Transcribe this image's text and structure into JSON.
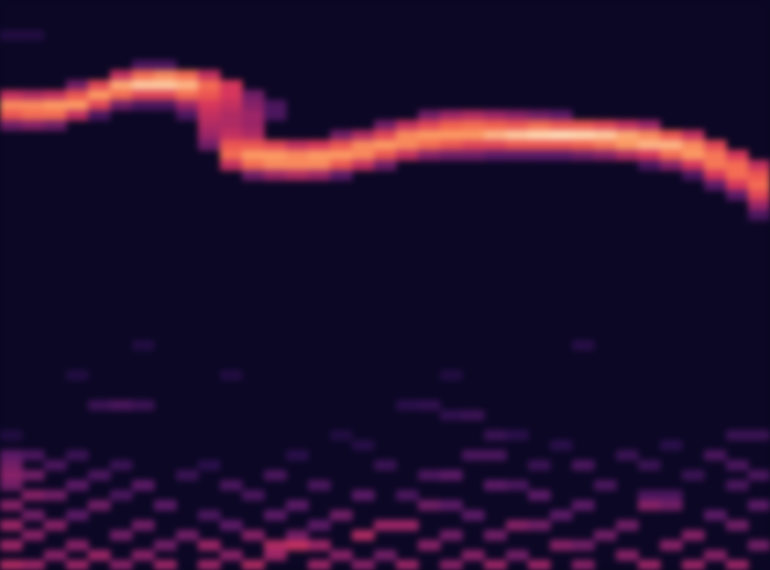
{
  "chart_data": {
    "type": "heatmap",
    "xlim": [
      0,
      35
    ],
    "ylim": [
      0,
      57
    ],
    "zlim": [
      0,
      100
    ],
    "tick_labels": false,
    "grid": false,
    "cells": [
      [
        0,
        3,
        15
      ],
      [
        1,
        3,
        15
      ],
      [
        0,
        9,
        60
      ],
      [
        0,
        10,
        85
      ],
      [
        0,
        11,
        75
      ],
      [
        0,
        12,
        40
      ],
      [
        1,
        9,
        55
      ],
      [
        1,
        10,
        85
      ],
      [
        1,
        11,
        80
      ],
      [
        1,
        12,
        45
      ],
      [
        2,
        9,
        60
      ],
      [
        2,
        10,
        88
      ],
      [
        2,
        11,
        80
      ],
      [
        2,
        12,
        40
      ],
      [
        3,
        8,
        40
      ],
      [
        3,
        9,
        75
      ],
      [
        3,
        10,
        88
      ],
      [
        3,
        11,
        60
      ],
      [
        4,
        8,
        70
      ],
      [
        4,
        9,
        88
      ],
      [
        4,
        10,
        70
      ],
      [
        4,
        11,
        30
      ],
      [
        5,
        7,
        60
      ],
      [
        5,
        8,
        90
      ],
      [
        5,
        9,
        80
      ],
      [
        5,
        10,
        40
      ],
      [
        6,
        6,
        30
      ],
      [
        6,
        7,
        80
      ],
      [
        6,
        8,
        95
      ],
      [
        6,
        9,
        70
      ],
      [
        6,
        10,
        30
      ],
      [
        7,
        6,
        30
      ],
      [
        7,
        7,
        85
      ],
      [
        7,
        8,
        95
      ],
      [
        7,
        9,
        70
      ],
      [
        7,
        10,
        30
      ],
      [
        8,
        7,
        80
      ],
      [
        8,
        8,
        92
      ],
      [
        8,
        9,
        80
      ],
      [
        8,
        10,
        50
      ],
      [
        8,
        11,
        30
      ],
      [
        9,
        7,
        60
      ],
      [
        9,
        8,
        80
      ],
      [
        9,
        9,
        75
      ],
      [
        9,
        10,
        65
      ],
      [
        9,
        11,
        60
      ],
      [
        9,
        12,
        55
      ],
      [
        9,
        13,
        50
      ],
      [
        9,
        14,
        40
      ],
      [
        10,
        8,
        65
      ],
      [
        10,
        9,
        65
      ],
      [
        10,
        10,
        60
      ],
      [
        10,
        11,
        55
      ],
      [
        10,
        12,
        55
      ],
      [
        10,
        13,
        60
      ],
      [
        10,
        14,
        75
      ],
      [
        10,
        15,
        80
      ],
      [
        10,
        16,
        60
      ],
      [
        11,
        9,
        40
      ],
      [
        11,
        10,
        45
      ],
      [
        11,
        11,
        50
      ],
      [
        11,
        12,
        50
      ],
      [
        11,
        13,
        55
      ],
      [
        11,
        14,
        75
      ],
      [
        11,
        15,
        88
      ],
      [
        11,
        16,
        80
      ],
      [
        11,
        17,
        40
      ],
      [
        12,
        10,
        30
      ],
      [
        12,
        11,
        30
      ],
      [
        12,
        14,
        70
      ],
      [
        12,
        15,
        88
      ],
      [
        12,
        16,
        85
      ],
      [
        12,
        17,
        50
      ],
      [
        13,
        14,
        60
      ],
      [
        13,
        15,
        85
      ],
      [
        13,
        16,
        85
      ],
      [
        13,
        17,
        55
      ],
      [
        14,
        14,
        65
      ],
      [
        14,
        15,
        88
      ],
      [
        14,
        16,
        85
      ],
      [
        14,
        17,
        50
      ],
      [
        15,
        13,
        40
      ],
      [
        15,
        14,
        75
      ],
      [
        15,
        15,
        88
      ],
      [
        15,
        16,
        75
      ],
      [
        15,
        17,
        35
      ],
      [
        16,
        13,
        55
      ],
      [
        16,
        14,
        85
      ],
      [
        16,
        15,
        85
      ],
      [
        16,
        16,
        60
      ],
      [
        17,
        12,
        40
      ],
      [
        17,
        13,
        70
      ],
      [
        17,
        14,
        88
      ],
      [
        17,
        15,
        75
      ],
      [
        17,
        16,
        40
      ],
      [
        18,
        12,
        60
      ],
      [
        18,
        13,
        85
      ],
      [
        18,
        14,
        85
      ],
      [
        18,
        15,
        60
      ],
      [
        19,
        11,
        40
      ],
      [
        19,
        12,
        70
      ],
      [
        19,
        13,
        88
      ],
      [
        19,
        14,
        80
      ],
      [
        19,
        15,
        45
      ],
      [
        20,
        11,
        50
      ],
      [
        20,
        12,
        78
      ],
      [
        20,
        13,
        88
      ],
      [
        20,
        14,
        75
      ],
      [
        20,
        15,
        40
      ],
      [
        21,
        11,
        55
      ],
      [
        21,
        12,
        80
      ],
      [
        21,
        13,
        88
      ],
      [
        21,
        14,
        70
      ],
      [
        21,
        15,
        40
      ],
      [
        22,
        11,
        50
      ],
      [
        22,
        12,
        78
      ],
      [
        22,
        13,
        92
      ],
      [
        22,
        14,
        70
      ],
      [
        22,
        15,
        35
      ],
      [
        23,
        11,
        45
      ],
      [
        23,
        12,
        75
      ],
      [
        23,
        13,
        95
      ],
      [
        23,
        14,
        75
      ],
      [
        23,
        15,
        35
      ],
      [
        24,
        11,
        40
      ],
      [
        24,
        12,
        80
      ],
      [
        24,
        13,
        97
      ],
      [
        24,
        14,
        75
      ],
      [
        24,
        15,
        35
      ],
      [
        25,
        11,
        35
      ],
      [
        25,
        12,
        75
      ],
      [
        25,
        13,
        98
      ],
      [
        25,
        14,
        75
      ],
      [
        25,
        15,
        35
      ],
      [
        26,
        12,
        75
      ],
      [
        26,
        13,
        97
      ],
      [
        26,
        14,
        78
      ],
      [
        26,
        15,
        40
      ],
      [
        27,
        12,
        70
      ],
      [
        27,
        13,
        95
      ],
      [
        27,
        14,
        82
      ],
      [
        27,
        15,
        45
      ],
      [
        28,
        12,
        60
      ],
      [
        28,
        13,
        90
      ],
      [
        28,
        14,
        88
      ],
      [
        28,
        15,
        55
      ],
      [
        29,
        12,
        50
      ],
      [
        29,
        13,
        85
      ],
      [
        29,
        14,
        92
      ],
      [
        29,
        15,
        65
      ],
      [
        29,
        16,
        30
      ],
      [
        30,
        13,
        75
      ],
      [
        30,
        14,
        92
      ],
      [
        30,
        15,
        80
      ],
      [
        30,
        16,
        45
      ],
      [
        31,
        13,
        60
      ],
      [
        31,
        14,
        85
      ],
      [
        31,
        15,
        88
      ],
      [
        31,
        16,
        65
      ],
      [
        31,
        17,
        30
      ],
      [
        32,
        14,
        70
      ],
      [
        32,
        15,
        82
      ],
      [
        32,
        16,
        82
      ],
      [
        32,
        17,
        65
      ],
      [
        32,
        18,
        35
      ],
      [
        33,
        15,
        65
      ],
      [
        33,
        16,
        80
      ],
      [
        33,
        17,
        80
      ],
      [
        33,
        18,
        65
      ],
      [
        33,
        19,
        35
      ],
      [
        34,
        16,
        60
      ],
      [
        34,
        17,
        75
      ],
      [
        34,
        18,
        80
      ],
      [
        34,
        19,
        70
      ],
      [
        34,
        20,
        50
      ],
      [
        34,
        21,
        30
      ],
      [
        6,
        34,
        15
      ],
      [
        26,
        34,
        18
      ],
      [
        3,
        37,
        15
      ],
      [
        10,
        37,
        15
      ],
      [
        20,
        37,
        15
      ],
      [
        4,
        40,
        25
      ],
      [
        5,
        40,
        30
      ],
      [
        6,
        40,
        25
      ],
      [
        18,
        40,
        20
      ],
      [
        19,
        40,
        22
      ],
      [
        20,
        41,
        22
      ],
      [
        21,
        41,
        25
      ],
      [
        0,
        43,
        15
      ],
      [
        15,
        43,
        15
      ],
      [
        22,
        43,
        25
      ],
      [
        23,
        43,
        20
      ],
      [
        33,
        43,
        25
      ],
      [
        34,
        43,
        25
      ],
      [
        16,
        44,
        18
      ],
      [
        25,
        44,
        20
      ],
      [
        30,
        44,
        20
      ],
      [
        0,
        45,
        35
      ],
      [
        1,
        45,
        30
      ],
      [
        3,
        45,
        25
      ],
      [
        13,
        45,
        20
      ],
      [
        21,
        45,
        30
      ],
      [
        22,
        45,
        30
      ],
      [
        28,
        45,
        25
      ],
      [
        32,
        45,
        30
      ],
      [
        0,
        46,
        40
      ],
      [
        2,
        46,
        30
      ],
      [
        5,
        46,
        25
      ],
      [
        9,
        46,
        20
      ],
      [
        17,
        46,
        25
      ],
      [
        24,
        46,
        25
      ],
      [
        26,
        46,
        30
      ],
      [
        29,
        46,
        25
      ],
      [
        33,
        46,
        30
      ],
      [
        0,
        47,
        45
      ],
      [
        1,
        47,
        40
      ],
      [
        4,
        47,
        30
      ],
      [
        8,
        47,
        25
      ],
      [
        12,
        47,
        30
      ],
      [
        19,
        47,
        30
      ],
      [
        20,
        47,
        35
      ],
      [
        31,
        47,
        25
      ],
      [
        34,
        47,
        30
      ],
      [
        0,
        48,
        40
      ],
      [
        3,
        48,
        35
      ],
      [
        6,
        48,
        35
      ],
      [
        10,
        48,
        30
      ],
      [
        14,
        48,
        30
      ],
      [
        22,
        48,
        35
      ],
      [
        23,
        48,
        30
      ],
      [
        27,
        48,
        30
      ],
      [
        33,
        48,
        30
      ],
      [
        1,
        49,
        45
      ],
      [
        2,
        49,
        40
      ],
      [
        5,
        49,
        30
      ],
      [
        11,
        49,
        30
      ],
      [
        16,
        49,
        35
      ],
      [
        18,
        49,
        30
      ],
      [
        24,
        49,
        35
      ],
      [
        29,
        49,
        30
      ],
      [
        30,
        49,
        30
      ],
      [
        0,
        50,
        45
      ],
      [
        4,
        50,
        40
      ],
      [
        7,
        50,
        35
      ],
      [
        13,
        50,
        35
      ],
      [
        19,
        50,
        40
      ],
      [
        20,
        50,
        35
      ],
      [
        26,
        50,
        35
      ],
      [
        29,
        50,
        45
      ],
      [
        30,
        50,
        40
      ],
      [
        34,
        50,
        35
      ],
      [
        1,
        51,
        40
      ],
      [
        3,
        51,
        35
      ],
      [
        9,
        51,
        30
      ],
      [
        12,
        51,
        35
      ],
      [
        15,
        51,
        40
      ],
      [
        21,
        51,
        35
      ],
      [
        25,
        51,
        35
      ],
      [
        32,
        51,
        35
      ],
      [
        0,
        52,
        50
      ],
      [
        2,
        52,
        45
      ],
      [
        6,
        52,
        40
      ],
      [
        10,
        52,
        35
      ],
      [
        14,
        52,
        35
      ],
      [
        17,
        52,
        50
      ],
      [
        18,
        52,
        50
      ],
      [
        23,
        52,
        45
      ],
      [
        24,
        52,
        40
      ],
      [
        28,
        52,
        40
      ],
      [
        33,
        52,
        40
      ],
      [
        1,
        53,
        45
      ],
      [
        5,
        53,
        40
      ],
      [
        8,
        53,
        40
      ],
      [
        11,
        53,
        45
      ],
      [
        13,
        53,
        40
      ],
      [
        16,
        53,
        55
      ],
      [
        20,
        53,
        40
      ],
      [
        22,
        53,
        40
      ],
      [
        27,
        53,
        40
      ],
      [
        31,
        53,
        45
      ],
      [
        0,
        54,
        50
      ],
      [
        3,
        54,
        45
      ],
      [
        7,
        54,
        40
      ],
      [
        9,
        54,
        50
      ],
      [
        12,
        54,
        55
      ],
      [
        13,
        54,
        60
      ],
      [
        14,
        54,
        50
      ],
      [
        19,
        54,
        45
      ],
      [
        25,
        54,
        45
      ],
      [
        26,
        54,
        40
      ],
      [
        30,
        54,
        45
      ],
      [
        34,
        54,
        40
      ],
      [
        2,
        55,
        45
      ],
      [
        4,
        55,
        50
      ],
      [
        6,
        55,
        45
      ],
      [
        10,
        55,
        45
      ],
      [
        12,
        55,
        50
      ],
      [
        15,
        55,
        45
      ],
      [
        17,
        55,
        40
      ],
      [
        21,
        55,
        45
      ],
      [
        23,
        55,
        40
      ],
      [
        28,
        55,
        45
      ],
      [
        32,
        55,
        45
      ],
      [
        0,
        56,
        55
      ],
      [
        1,
        56,
        50
      ],
      [
        3,
        56,
        50
      ],
      [
        5,
        56,
        45
      ],
      [
        7,
        56,
        50
      ],
      [
        9,
        56,
        50
      ],
      [
        11,
        56,
        55
      ],
      [
        14,
        56,
        50
      ],
      [
        16,
        56,
        45
      ],
      [
        18,
        56,
        50
      ],
      [
        20,
        56,
        45
      ],
      [
        22,
        56,
        50
      ],
      [
        24,
        56,
        50
      ],
      [
        26,
        56,
        45
      ],
      [
        29,
        56,
        50
      ],
      [
        31,
        56,
        50
      ],
      [
        33,
        56,
        50
      ]
    ]
  }
}
